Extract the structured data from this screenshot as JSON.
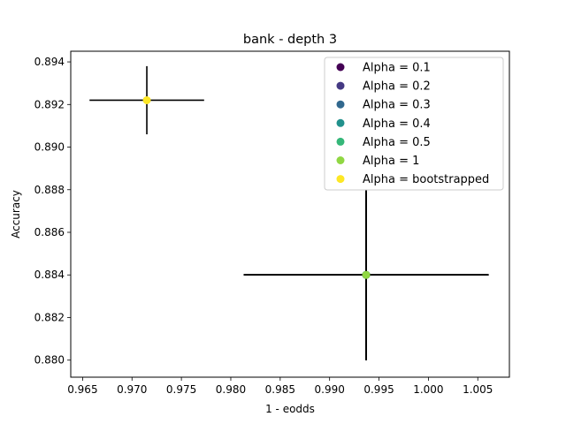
{
  "chart_data": {
    "type": "scatter",
    "title": "bank - depth 3",
    "xlabel": "1 - eodds",
    "ylabel": "Accuracy",
    "xlim": [
      0.9638,
      1.0082
    ],
    "ylim": [
      0.8792,
      0.8945
    ],
    "xticks": [
      "0.965",
      "0.970",
      "0.975",
      "0.980",
      "0.985",
      "0.990",
      "0.995",
      "1.000",
      "1.005"
    ],
    "xtick_values": [
      0.965,
      0.97,
      0.975,
      0.98,
      0.985,
      0.99,
      0.995,
      1.0,
      1.005
    ],
    "yticks": [
      "0.880",
      "0.882",
      "0.884",
      "0.886",
      "0.888",
      "0.890",
      "0.892",
      "0.894"
    ],
    "ytick_values": [
      0.88,
      0.882,
      0.884,
      0.886,
      0.888,
      0.89,
      0.892,
      0.894
    ],
    "grid": false,
    "legend_position": "top-right",
    "series": [
      {
        "name": "Alpha = 0.1",
        "color": "#440154",
        "points": [
          {
            "x": 0.9937,
            "y": 0.884,
            "xerr": 0.0124,
            "yerr": 0.004
          }
        ]
      },
      {
        "name": "Alpha = 0.2",
        "color": "#443983",
        "points": [
          {
            "x": 0.9937,
            "y": 0.884,
            "xerr": 0.0124,
            "yerr": 0.004
          }
        ]
      },
      {
        "name": "Alpha = 0.3",
        "color": "#31688e",
        "points": [
          {
            "x": 0.9937,
            "y": 0.884,
            "xerr": 0.0124,
            "yerr": 0.004
          }
        ]
      },
      {
        "name": "Alpha = 0.4",
        "color": "#21918c",
        "points": [
          {
            "x": 0.9937,
            "y": 0.884,
            "xerr": 0.0124,
            "yerr": 0.004
          }
        ]
      },
      {
        "name": "Alpha = 0.5",
        "color": "#35b779",
        "points": [
          {
            "x": 0.9937,
            "y": 0.884,
            "xerr": 0.0124,
            "yerr": 0.004
          }
        ]
      },
      {
        "name": "Alpha = 1",
        "color": "#90d743",
        "points": [
          {
            "x": 0.9937,
            "y": 0.884,
            "xerr": 0.0124,
            "yerr": 0.004
          }
        ]
      },
      {
        "name": "Alpha = bootstrapped",
        "color": "#fde725",
        "points": [
          {
            "x": 0.9715,
            "y": 0.8922,
            "xerr": 0.0058,
            "yerr": 0.0016
          }
        ]
      }
    ]
  }
}
